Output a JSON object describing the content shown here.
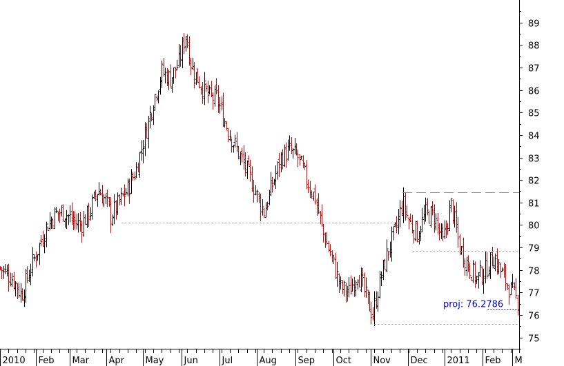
{
  "chart_data": {
    "type": "ohlc",
    "title": "",
    "xlabel": "",
    "ylabel": "",
    "y_axis_position": "right",
    "ylim": [
      74.5,
      90.0
    ],
    "yticks": [
      75,
      76,
      77,
      78,
      79,
      80,
      81,
      82,
      83,
      84,
      85,
      86,
      87,
      88,
      89
    ],
    "grid": false,
    "x_tick_labels": [
      "2010",
      "Feb",
      "Mar",
      "Apr",
      "May",
      "Jun",
      "Jul",
      "Aug",
      "Sep",
      "Oct",
      "Nov",
      "Dec",
      "2011",
      "Feb",
      "M"
    ],
    "x_range_weeks": [
      0,
      61
    ],
    "month_starts_weeks": [
      0,
      4.2,
      8.2,
      12.5,
      16.8,
      21.3,
      25.8,
      30.2,
      34.7,
      39.2,
      43.6,
      47.9,
      52.2,
      56.7,
      60.2
    ],
    "colors": {
      "up": "#000000",
      "down": "#dd0000",
      "guide": "#999999",
      "projection": "#0000cc",
      "axis": "#000000"
    },
    "price_path": [
      {
        "week": 0,
        "close": 78.1
      },
      {
        "week": 1.5,
        "close": 77.6
      },
      {
        "week": 2.5,
        "close": 76.9
      },
      {
        "week": 3.5,
        "close": 78.0
      },
      {
        "week": 4.5,
        "close": 79.0
      },
      {
        "week": 5.5,
        "close": 80.0
      },
      {
        "week": 6.5,
        "close": 80.5
      },
      {
        "week": 7.5,
        "close": 80.6
      },
      {
        "week": 8.5,
        "close": 80.2
      },
      {
        "week": 9.5,
        "close": 80.0
      },
      {
        "week": 10.5,
        "close": 80.6
      },
      {
        "week": 11.5,
        "close": 81.6
      },
      {
        "week": 12.5,
        "close": 81.0
      },
      {
        "week": 13.0,
        "close": 80.4
      },
      {
        "week": 14.0,
        "close": 81.0
      },
      {
        "week": 15.0,
        "close": 81.6
      },
      {
        "week": 16.0,
        "close": 82.5
      },
      {
        "week": 17.0,
        "close": 84.0
      },
      {
        "week": 18.0,
        "close": 85.5
      },
      {
        "week": 19.0,
        "close": 86.8
      },
      {
        "week": 20.0,
        "close": 86.5
      },
      {
        "week": 21.0,
        "close": 87.2
      },
      {
        "week": 21.8,
        "close": 88.5
      },
      {
        "week": 22.5,
        "close": 87.0
      },
      {
        "week": 23.5,
        "close": 86.3
      },
      {
        "week": 24.5,
        "close": 85.7
      },
      {
        "week": 25.5,
        "close": 85.6
      },
      {
        "week": 26.5,
        "close": 84.5
      },
      {
        "week": 27.5,
        "close": 83.6
      },
      {
        "week": 28.5,
        "close": 82.8
      },
      {
        "week": 29.5,
        "close": 82.0
      },
      {
        "week": 30.5,
        "close": 81.0
      },
      {
        "week": 31.0,
        "close": 80.6
      },
      {
        "week": 32.0,
        "close": 81.8
      },
      {
        "week": 33.0,
        "close": 83.0
      },
      {
        "week": 34.0,
        "close": 83.3
      },
      {
        "week": 35.0,
        "close": 83.0
      },
      {
        "week": 36.0,
        "close": 82.0
      },
      {
        "week": 37.0,
        "close": 81.2
      },
      {
        "week": 38.0,
        "close": 79.6
      },
      {
        "week": 39.0,
        "close": 78.5
      },
      {
        "week": 40.0,
        "close": 77.2
      },
      {
        "week": 41.0,
        "close": 77.0
      },
      {
        "week": 42.0,
        "close": 77.9
      },
      {
        "week": 43.0,
        "close": 76.8
      },
      {
        "week": 43.8,
        "close": 76.0
      },
      {
        "week": 44.5,
        "close": 77.3
      },
      {
        "week": 45.5,
        "close": 78.8
      },
      {
        "week": 46.5,
        "close": 79.8
      },
      {
        "week": 47.3,
        "close": 81.0
      },
      {
        "week": 48.0,
        "close": 80.2
      },
      {
        "week": 49.0,
        "close": 79.6
      },
      {
        "week": 50.0,
        "close": 80.5
      },
      {
        "week": 51.0,
        "close": 80.4
      },
      {
        "week": 52.0,
        "close": 79.2
      },
      {
        "week": 53.0,
        "close": 80.9
      },
      {
        "week": 54.0,
        "close": 79.0
      },
      {
        "week": 55.0,
        "close": 78.2
      },
      {
        "week": 56.0,
        "close": 77.6
      },
      {
        "week": 57.0,
        "close": 78.0
      },
      {
        "week": 58.0,
        "close": 78.6
      },
      {
        "week": 59.0,
        "close": 77.8
      },
      {
        "week": 60.0,
        "close": 77.1
      },
      {
        "week": 60.8,
        "close": 76.6
      }
    ],
    "annotations": {
      "projection_label": "proj: 76.2786",
      "projection_value": 76.2786,
      "resistance_levels": [
        {
          "value": 81.45,
          "from_week": 47.3,
          "to_week": 61,
          "style": "long-dash"
        },
        {
          "value": 78.85,
          "from_week": 48.5,
          "to_week": 61,
          "style": "dotted"
        },
        {
          "value": 80.1,
          "from_week": 14.3,
          "to_week": 47.0,
          "style": "dotted"
        },
        {
          "value": 75.6,
          "from_week": 44.0,
          "to_week": 61,
          "style": "dotted"
        }
      ]
    }
  }
}
